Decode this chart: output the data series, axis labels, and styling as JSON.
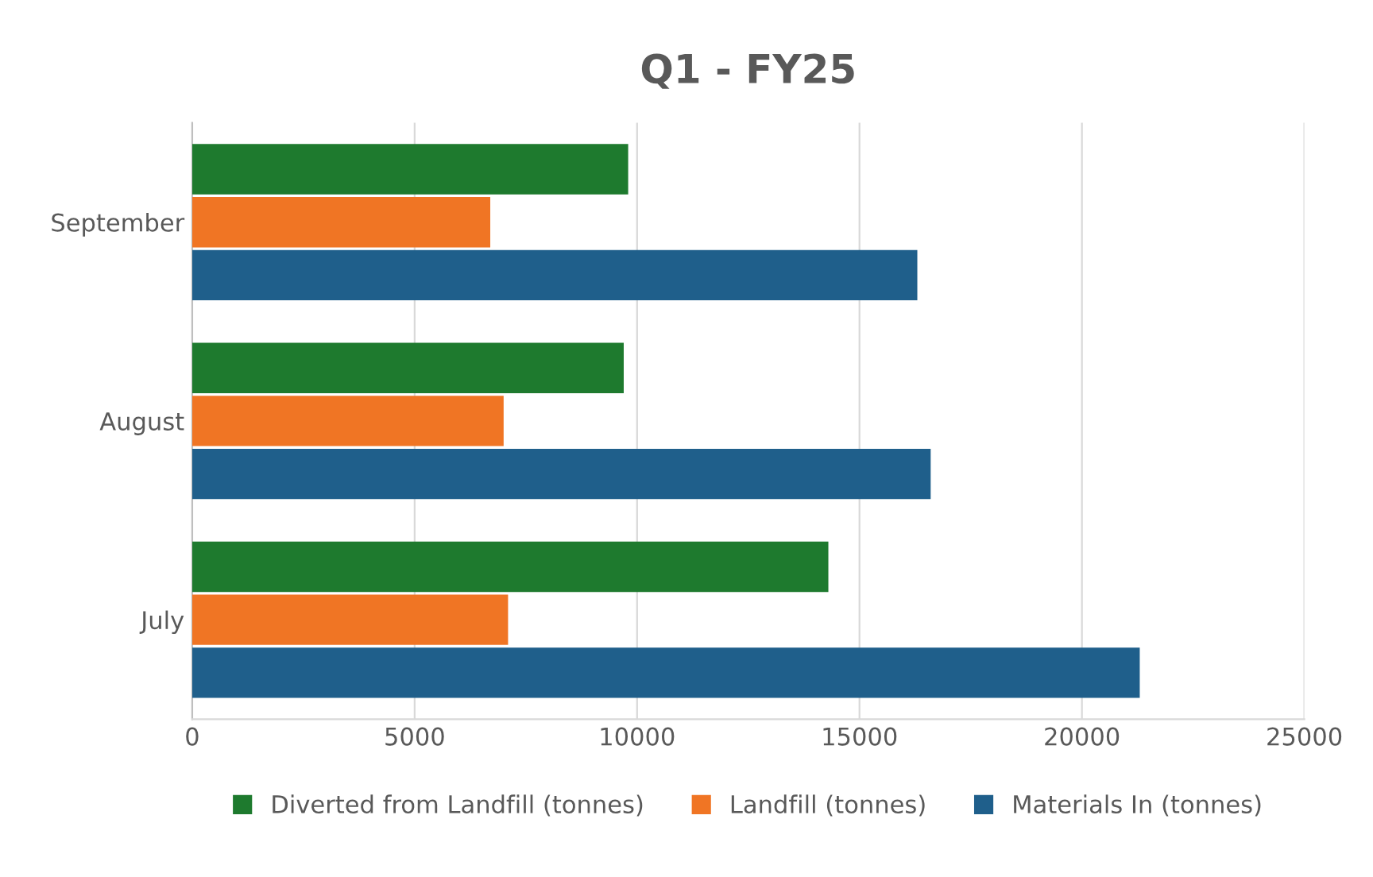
{
  "chart_data": {
    "type": "bar",
    "orientation": "horizontal",
    "title": "Q1 - FY25",
    "categories": [
      "September",
      "August",
      "July"
    ],
    "series": [
      {
        "name": "Diverted from Landfill (tonnes)",
        "color": "#1e7a2e",
        "values": [
          9800,
          9700,
          14300
        ]
      },
      {
        "name": "Landfill (tonnes)",
        "color": "#f07524",
        "values": [
          6700,
          7000,
          7100
        ]
      },
      {
        "name": "Materials In (tonnes)",
        "color": "#1f5f8b",
        "values": [
          16300,
          16600,
          21300
        ]
      }
    ],
    "xlim": [
      0,
      25000
    ],
    "xticks": [
      0,
      5000,
      10000,
      15000,
      20000,
      25000
    ],
    "grid": "x",
    "legend": "bottom"
  }
}
